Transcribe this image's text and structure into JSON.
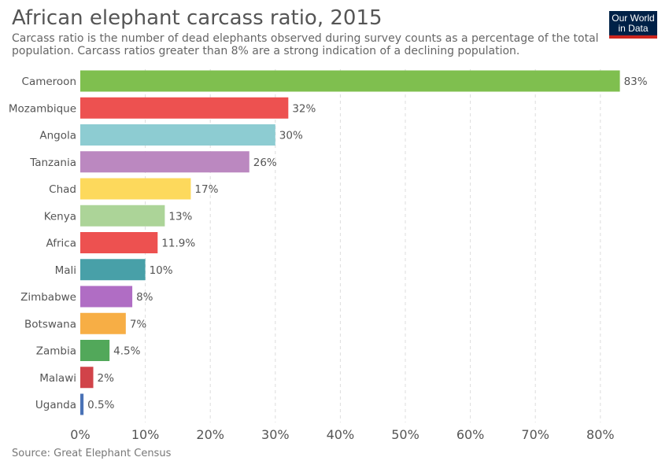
{
  "title": "African elephant carcass ratio, 2015",
  "subtitle": "Carcass ratio is the number of dead elephants observed during survey counts as a percentage of the total population. Carcass ratios greater than 8% are a strong indication of a declining population.",
  "logo": {
    "line1": "Our World",
    "line2": "in Data"
  },
  "source": "Source: Great Elephant Census",
  "chart_data": {
    "type": "bar",
    "orientation": "horizontal",
    "title": "African elephant carcass ratio, 2015",
    "xlabel": "",
    "ylabel": "",
    "xlim": [
      0,
      85
    ],
    "x_ticks": [
      "0%",
      "10%",
      "20%",
      "30%",
      "40%",
      "50%",
      "60%",
      "70%",
      "80%"
    ],
    "x_tick_values": [
      0,
      10,
      20,
      30,
      40,
      50,
      60,
      70,
      80
    ],
    "grid": true,
    "categories": [
      "Cameroon",
      "Mozambique",
      "Angola",
      "Tanzania",
      "Chad",
      "Kenya",
      "Africa",
      "Mali",
      "Zimbabwe",
      "Botswana",
      "Zambia",
      "Malawi",
      "Uganda"
    ],
    "values": [
      83,
      32,
      30,
      26,
      17,
      13,
      11.9,
      10,
      8,
      7,
      4.5,
      2,
      0.5
    ],
    "value_labels": [
      "83%",
      "32%",
      "30%",
      "26%",
      "17%",
      "13%",
      "11.9%",
      "10%",
      "8%",
      "7%",
      "4.5%",
      "2%",
      "0.5%"
    ],
    "colors": [
      "#7fbf4f",
      "#ed5150",
      "#8dccd2",
      "#bb88c0",
      "#fdd95c",
      "#acd498",
      "#ed5150",
      "#48a0a8",
      "#b06dc4",
      "#f7ae45",
      "#52a85a",
      "#d14349",
      "#4a72b6"
    ]
  }
}
